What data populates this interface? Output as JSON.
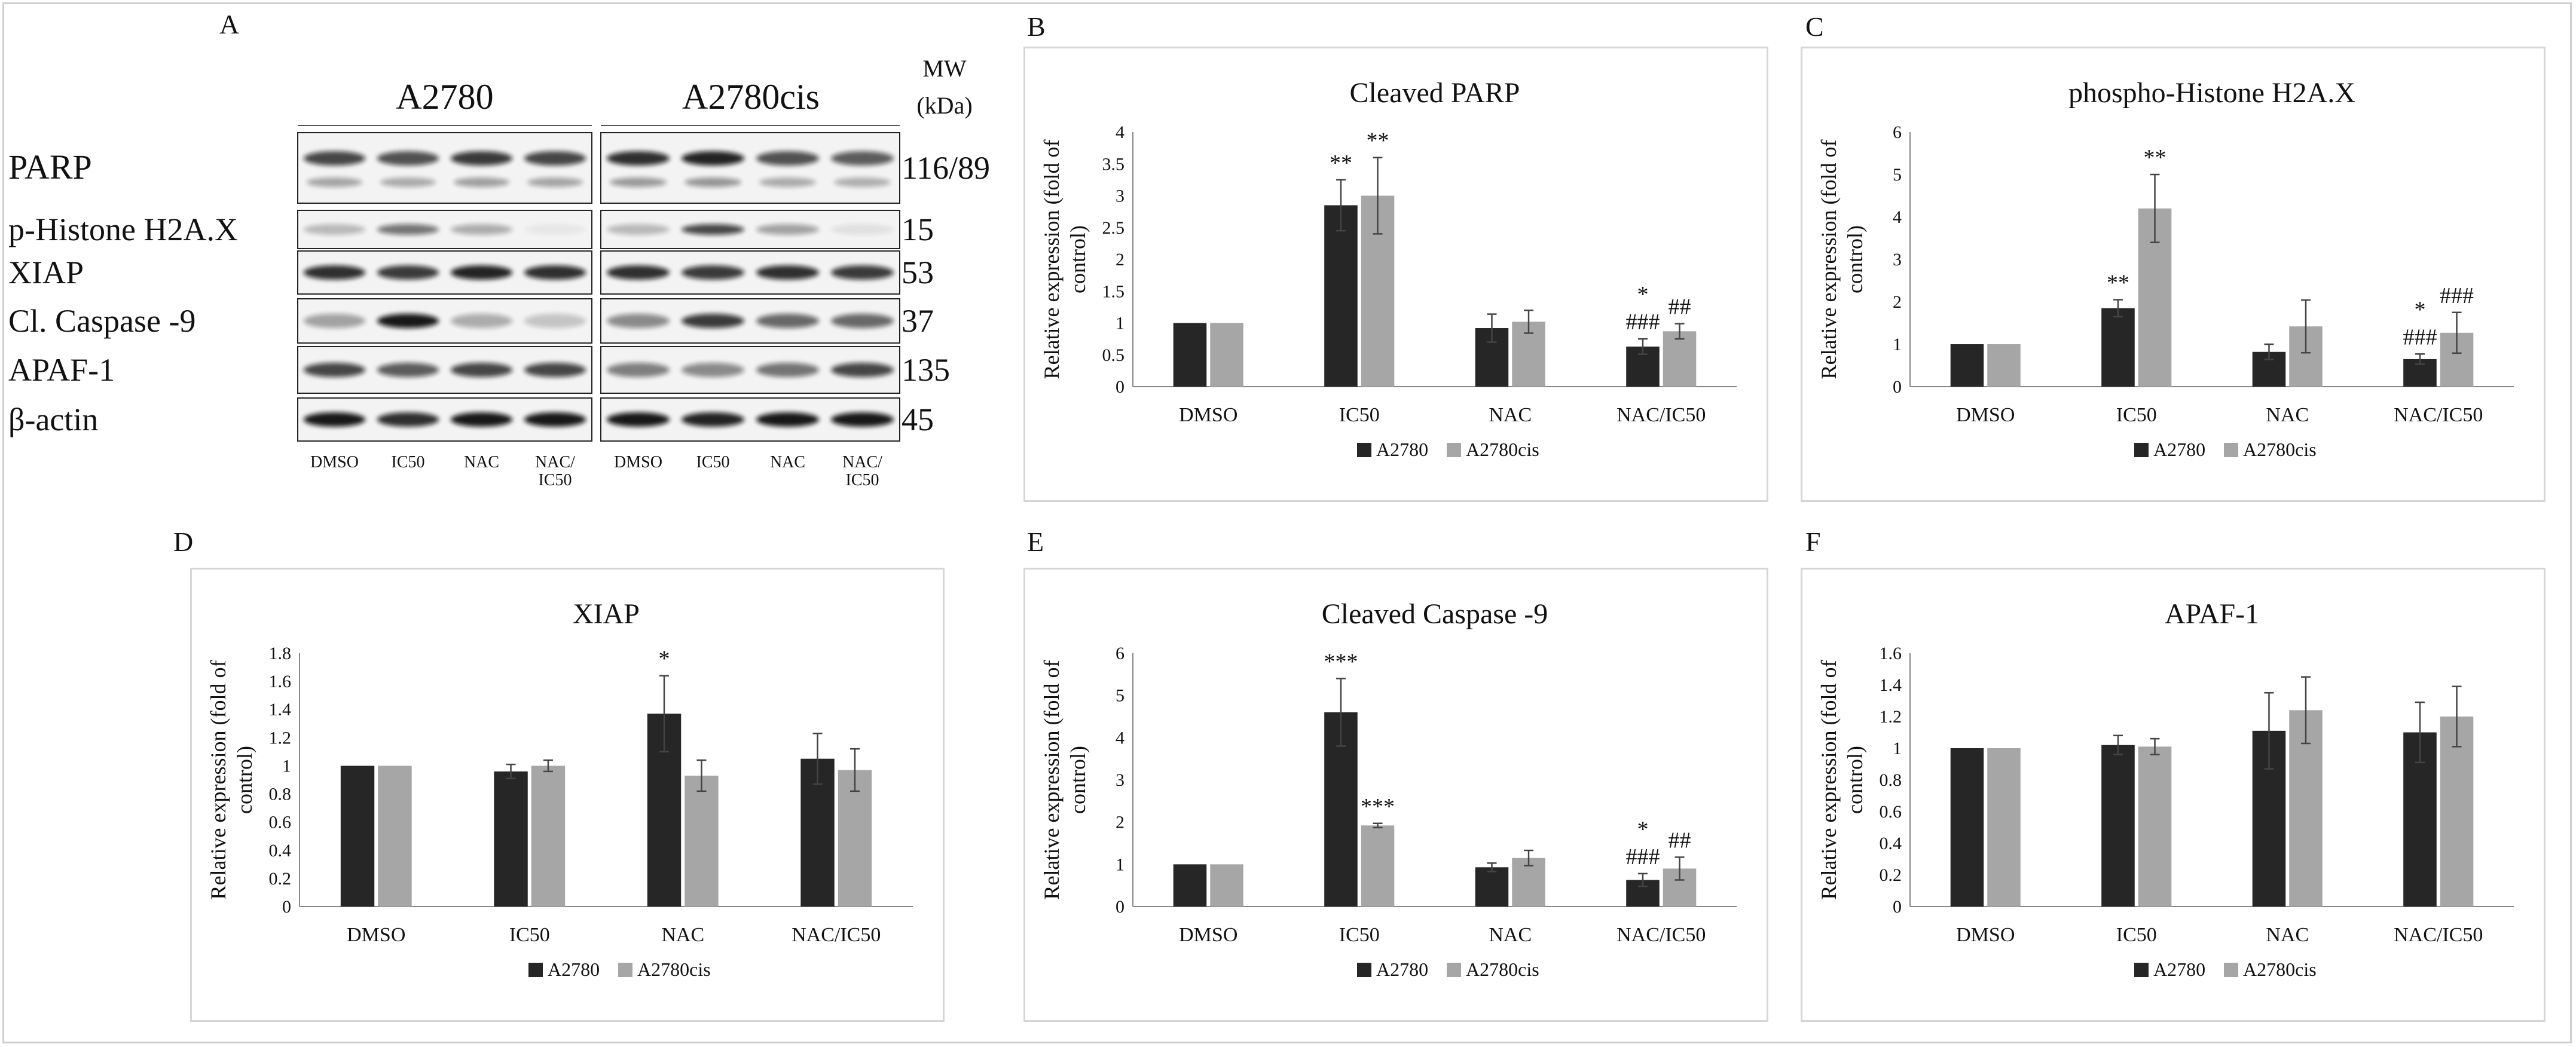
{
  "figure": {
    "panel_labels": [
      "A",
      "B",
      "C",
      "D",
      "E",
      "F"
    ]
  },
  "blot": {
    "cell_lines": [
      "A2780",
      "A2780cis"
    ],
    "mw_header": [
      "MW",
      "(kDa)"
    ],
    "rows": [
      {
        "label": "PARP",
        "mw": "116/89"
      },
      {
        "label": "p-Histone H2A.X",
        "mw": "15"
      },
      {
        "label": "XIAP",
        "mw": "53"
      },
      {
        "label": "Cl. Caspase -9",
        "mw": "37"
      },
      {
        "label": "APAF-1",
        "mw": "135"
      },
      {
        "label": "β-actin",
        "mw": "45"
      }
    ],
    "lanes": [
      "DMSO",
      "IC50",
      "NAC",
      "NAC/\nIC50"
    ]
  },
  "chart_data": [
    {
      "panel": "B",
      "type": "bar",
      "title": "Cleaved PARP",
      "ylabel": "Relative expression (fold of control)",
      "categories": [
        "DMSO",
        "IC50",
        "NAC",
        "NAC/IC50"
      ],
      "ylim": [
        0,
        4
      ],
      "yticks": [
        0,
        0.5,
        1,
        1.5,
        2,
        2.5,
        3,
        3.5,
        4
      ],
      "series": [
        {
          "name": "A2780",
          "color": "#262626",
          "values": [
            1.0,
            2.85,
            0.92,
            0.63
          ],
          "errors": [
            0.0,
            0.4,
            0.22,
            0.12
          ]
        },
        {
          "name": "A2780cis",
          "color": "#a6a6a6",
          "values": [
            1.0,
            3.0,
            1.02,
            0.87
          ],
          "errors": [
            0.0,
            0.6,
            0.18,
            0.12
          ]
        }
      ],
      "annotations": [
        {
          "category": 1,
          "series": 0,
          "lines": [
            "**"
          ]
        },
        {
          "category": 1,
          "series": 1,
          "lines": [
            "**"
          ]
        },
        {
          "category": 3,
          "series": 0,
          "lines": [
            "*",
            "###"
          ]
        },
        {
          "category": 3,
          "series": 1,
          "lines": [
            "##"
          ]
        }
      ]
    },
    {
      "panel": "C",
      "type": "bar",
      "title": "phospho-Histone H2A.X",
      "ylabel": "Relative expression (fold of control)",
      "categories": [
        "DMSO",
        "IC50",
        "NAC",
        "NAC/IC50"
      ],
      "ylim": [
        0,
        6
      ],
      "yticks": [
        0,
        1,
        2,
        3,
        4,
        5,
        6
      ],
      "series": [
        {
          "name": "A2780",
          "color": "#262626",
          "values": [
            1.0,
            1.85,
            0.82,
            0.65
          ],
          "errors": [
            0.0,
            0.2,
            0.18,
            0.12
          ]
        },
        {
          "name": "A2780cis",
          "color": "#a6a6a6",
          "values": [
            1.0,
            4.2,
            1.42,
            1.27
          ],
          "errors": [
            0.0,
            0.8,
            0.62,
            0.48
          ]
        }
      ],
      "annotations": [
        {
          "category": 1,
          "series": 0,
          "lines": [
            "**"
          ]
        },
        {
          "category": 1,
          "series": 1,
          "lines": [
            "**"
          ]
        },
        {
          "category": 3,
          "series": 0,
          "lines": [
            "*",
            "###"
          ]
        },
        {
          "category": 3,
          "series": 1,
          "lines": [
            "###"
          ]
        }
      ]
    },
    {
      "panel": "D",
      "type": "bar",
      "title": "XIAP",
      "ylabel": "Relative expression (fold of control)",
      "categories": [
        "DMSO",
        "IC50",
        "NAC",
        "NAC/IC50"
      ],
      "ylim": [
        0,
        1.8
      ],
      "yticks": [
        0,
        0.2,
        0.4,
        0.6,
        0.8,
        1,
        1.2,
        1.4,
        1.6,
        1.8
      ],
      "series": [
        {
          "name": "A2780",
          "color": "#262626",
          "values": [
            1.0,
            0.96,
            1.37,
            1.05
          ],
          "errors": [
            0.0,
            0.05,
            0.27,
            0.18
          ]
        },
        {
          "name": "A2780cis",
          "color": "#a6a6a6",
          "values": [
            1.0,
            1.0,
            0.93,
            0.97
          ],
          "errors": [
            0.0,
            0.04,
            0.11,
            0.15
          ]
        }
      ],
      "annotations": [
        {
          "category": 2,
          "series": 0,
          "lines": [
            "*"
          ]
        }
      ]
    },
    {
      "panel": "E",
      "type": "bar",
      "title": "Cleaved Caspase -9",
      "ylabel": "Relative expression (fold of control)",
      "categories": [
        "DMSO",
        "IC50",
        "NAC",
        "NAC/IC50"
      ],
      "ylim": [
        0,
        6
      ],
      "yticks": [
        0,
        1,
        2,
        3,
        4,
        5,
        6
      ],
      "series": [
        {
          "name": "A2780",
          "color": "#262626",
          "values": [
            1.0,
            4.6,
            0.93,
            0.63
          ],
          "errors": [
            0.0,
            0.8,
            0.1,
            0.15
          ]
        },
        {
          "name": "A2780cis",
          "color": "#a6a6a6",
          "values": [
            1.0,
            1.92,
            1.15,
            0.9
          ],
          "errors": [
            0.0,
            0.05,
            0.18,
            0.27
          ]
        }
      ],
      "annotations": [
        {
          "category": 1,
          "series": 0,
          "lines": [
            "***"
          ]
        },
        {
          "category": 1,
          "series": 1,
          "lines": [
            "***"
          ]
        },
        {
          "category": 3,
          "series": 0,
          "lines": [
            "*",
            "###"
          ]
        },
        {
          "category": 3,
          "series": 1,
          "lines": [
            "##"
          ]
        }
      ]
    },
    {
      "panel": "F",
      "type": "bar",
      "title": "APAF-1",
      "ylabel": "Relative expression (fold of control)",
      "categories": [
        "DMSO",
        "IC50",
        "NAC",
        "NAC/IC50"
      ],
      "ylim": [
        0,
        1.6
      ],
      "yticks": [
        0,
        0.2,
        0.4,
        0.6,
        0.8,
        1,
        1.2,
        1.4,
        1.6
      ],
      "series": [
        {
          "name": "A2780",
          "color": "#262626",
          "values": [
            1.0,
            1.02,
            1.11,
            1.1
          ],
          "errors": [
            0.0,
            0.06,
            0.24,
            0.19
          ]
        },
        {
          "name": "A2780cis",
          "color": "#a6a6a6",
          "values": [
            1.0,
            1.01,
            1.24,
            1.2
          ],
          "errors": [
            0.0,
            0.05,
            0.21,
            0.19
          ]
        }
      ],
      "annotations": []
    }
  ]
}
